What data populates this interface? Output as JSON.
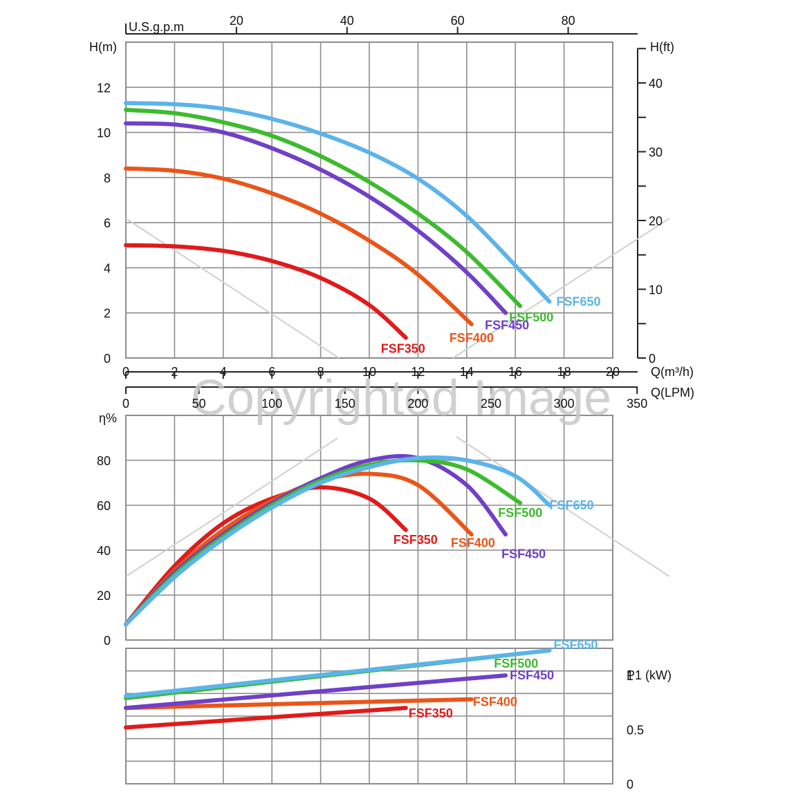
{
  "watermark": "Copyrighted Image",
  "colors": {
    "FSF650": "#5bb4ea",
    "FSF500": "#3dbb2e",
    "FSF450": "#7040c8",
    "FSF400": "#ea5518",
    "FSF350": "#e21a1a",
    "grid": "#8c8c8c",
    "axis": "#222222"
  },
  "chart_data": [
    {
      "type": "line",
      "panel": "head",
      "xlabel": "Q(m³/h)",
      "ylabel": "H(m)",
      "y2label": "H(ft)",
      "x2label": "U.S.g.p.m",
      "xlim": [
        0,
        20
      ],
      "ylim": [
        0,
        14
      ],
      "x_ticks": [
        0,
        2,
        4,
        6,
        8,
        10,
        12,
        14,
        16,
        18,
        20
      ],
      "y_ticks": [
        0,
        2,
        4,
        6,
        8,
        10,
        12
      ],
      "y2_ticks": [
        0,
        10,
        20,
        30,
        40
      ],
      "x2_ticks": [
        20,
        40,
        60,
        80
      ],
      "secondary_x_axis": {
        "label": "Q(LPM)",
        "ticks": [
          0,
          50,
          100,
          150,
          200,
          250,
          300,
          350
        ]
      },
      "grid": true,
      "series": [
        {
          "name": "FSF650",
          "x": [
            0,
            2,
            4,
            6,
            8,
            10,
            12,
            14,
            16,
            17.4
          ],
          "y": [
            11.3,
            11.25,
            11.05,
            10.6,
            9.95,
            9.1,
            7.95,
            6.3,
            4.1,
            2.5
          ]
        },
        {
          "name": "FSF500",
          "x": [
            0,
            2,
            4,
            6,
            8,
            10,
            12,
            14,
            16.2
          ],
          "y": [
            11.0,
            10.85,
            10.45,
            9.85,
            8.95,
            7.8,
            6.4,
            4.7,
            2.3
          ]
        },
        {
          "name": "FSF450",
          "x": [
            0,
            2,
            4,
            6,
            8,
            10,
            12,
            14,
            15.6
          ],
          "y": [
            10.4,
            10.35,
            10.0,
            9.3,
            8.35,
            7.15,
            5.65,
            3.8,
            2.0
          ]
        },
        {
          "name": "FSF400",
          "x": [
            0,
            2,
            4,
            6,
            8,
            10,
            12,
            14.2
          ],
          "y": [
            8.4,
            8.3,
            7.95,
            7.3,
            6.4,
            5.2,
            3.7,
            1.5
          ]
        },
        {
          "name": "FSF350",
          "x": [
            0,
            2,
            4,
            6,
            8,
            10,
            11.5
          ],
          "y": [
            5.0,
            4.95,
            4.75,
            4.3,
            3.55,
            2.35,
            0.9
          ]
        }
      ]
    },
    {
      "type": "line",
      "panel": "efficiency",
      "ylabel": "η%",
      "xlim": [
        0,
        20
      ],
      "ylim": [
        0,
        100
      ],
      "y_ticks": [
        0,
        20,
        40,
        60,
        80
      ],
      "grid": true,
      "series": [
        {
          "name": "FSF650",
          "x": [
            0,
            2,
            4,
            6,
            8,
            10,
            12,
            14,
            16,
            17.4
          ],
          "y": [
            7,
            28,
            45,
            59,
            70,
            77,
            81,
            80,
            73,
            60
          ]
        },
        {
          "name": "FSF500",
          "x": [
            0,
            2,
            4,
            6,
            8,
            10,
            12,
            14,
            16.2
          ],
          "y": [
            7,
            29,
            46,
            60,
            71,
            78,
            80,
            76,
            61
          ]
        },
        {
          "name": "FSF450",
          "x": [
            0,
            2,
            4,
            6,
            8,
            10,
            12,
            14,
            15.6
          ],
          "y": [
            7,
            30,
            47,
            61,
            72,
            80,
            81,
            69,
            47
          ]
        },
        {
          "name": "FSF400",
          "x": [
            0,
            2,
            4,
            6,
            8,
            10,
            12,
            14.2
          ],
          "y": [
            7,
            31,
            49,
            62,
            71,
            74,
            69,
            47
          ]
        },
        {
          "name": "FSF350",
          "x": [
            0,
            2,
            4,
            6,
            8,
            10,
            11.5
          ],
          "y": [
            7,
            33,
            52,
            63,
            68,
            63,
            49
          ]
        }
      ]
    },
    {
      "type": "line",
      "panel": "power",
      "ylabel": "P1 (kW)",
      "xlim": [
        0,
        20
      ],
      "ylim": [
        0,
        1.25
      ],
      "y_ticks": [
        0,
        0.5,
        1
      ],
      "grid": true,
      "series": [
        {
          "name": "FSF650",
          "x": [
            0,
            17.4
          ],
          "y": [
            0.81,
            1.23
          ]
        },
        {
          "name": "FSF500",
          "x": [
            0,
            16.2
          ],
          "y": [
            0.79,
            1.2
          ]
        },
        {
          "name": "FSF450",
          "x": [
            0,
            15.6
          ],
          "y": [
            0.7,
            1.0
          ]
        },
        {
          "name": "FSF400",
          "x": [
            0,
            14.2
          ],
          "y": [
            0.7,
            0.78
          ]
        },
        {
          "name": "FSF350",
          "x": [
            0,
            11.5
          ],
          "y": [
            0.52,
            0.7
          ]
        }
      ]
    }
  ]
}
